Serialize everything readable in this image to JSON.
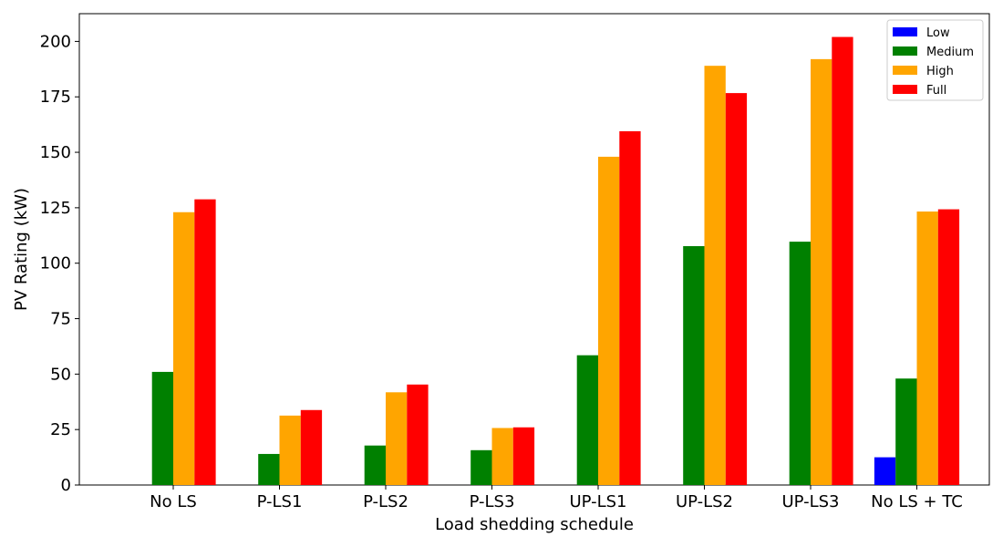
{
  "chart_data": {
    "type": "bar",
    "categories": [
      "No LS",
      "P-LS1",
      "P-LS2",
      "P-LS3",
      "UP-LS1",
      "UP-LS2",
      "UP-LS3",
      "No LS + TC"
    ],
    "series": [
      {
        "name": "Low",
        "color": "#0000ff",
        "values": [
          0,
          0,
          0,
          0,
          0,
          0,
          0,
          12.5
        ]
      },
      {
        "name": "Medium",
        "color": "#008000",
        "values": [
          51,
          14,
          17.8,
          15.7,
          58.5,
          107.7,
          109.7,
          48
        ]
      },
      {
        "name": "High",
        "color": "#ffa500",
        "values": [
          123,
          31.3,
          41.8,
          25.7,
          148,
          189,
          192,
          123.3
        ]
      },
      {
        "name": "Full",
        "color": "#ff0000",
        "values": [
          128.8,
          33.8,
          45.3,
          26,
          159.5,
          176.7,
          202,
          124.3
        ]
      }
    ],
    "xlabel": "Load shedding schedule",
    "ylabel": "PV Rating (kW)",
    "ylim": [
      0,
      212.5
    ],
    "yticks": [
      0,
      25,
      50,
      75,
      100,
      125,
      150,
      175,
      200
    ],
    "legend_position": "top-right",
    "grid": false
  }
}
